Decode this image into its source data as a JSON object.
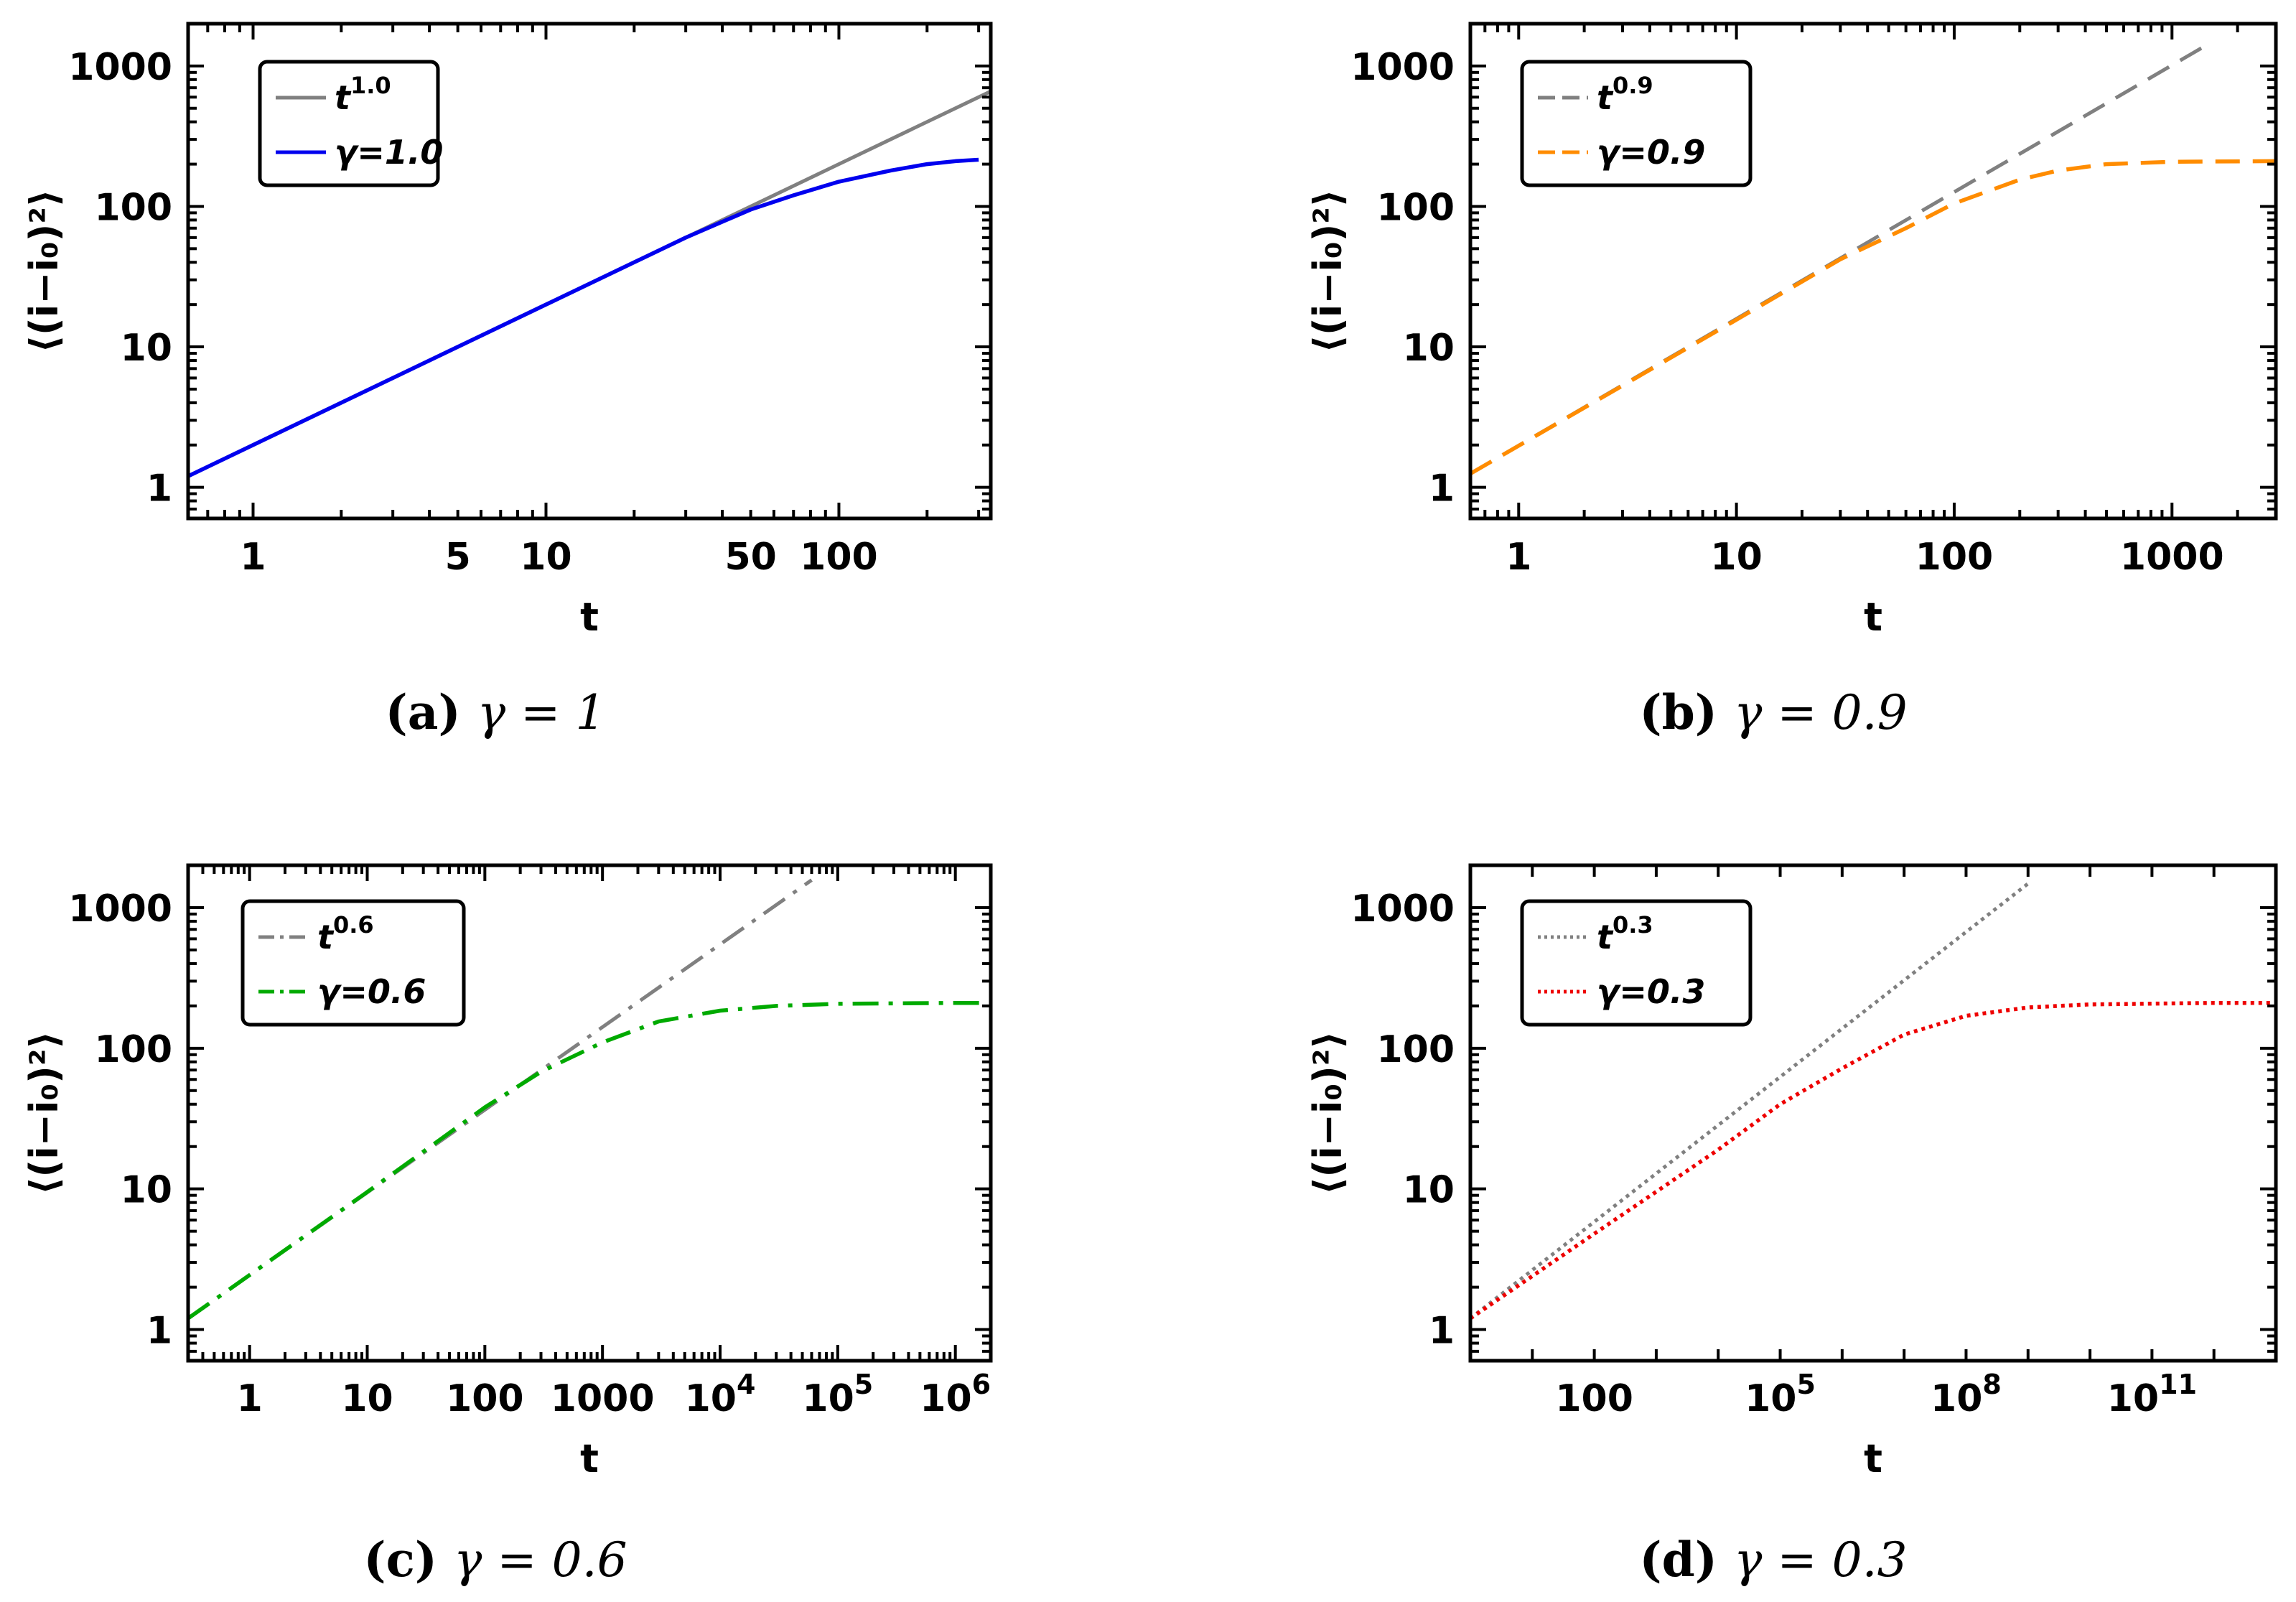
{
  "chart_data": [
    {
      "type": "line",
      "panel": "a",
      "caption_letter": "(a)",
      "caption_eq": "γ = 1",
      "xscale": "log",
      "yscale": "log",
      "xlim": [
        0.6,
        330
      ],
      "ylim": [
        0.6,
        2000
      ],
      "xlabel": "t",
      "ylabel": "⟨(i−i₀)²⟩",
      "xticks": [
        {
          "value": 1,
          "label": "1"
        },
        {
          "value": 5,
          "label": "5"
        },
        {
          "value": 10,
          "label": "10"
        },
        {
          "value": 50,
          "label": "50"
        },
        {
          "value": 100,
          "label": "100"
        }
      ],
      "yticks": [
        {
          "value": 1,
          "label": "1"
        },
        {
          "value": 10,
          "label": "10"
        },
        {
          "value": 100,
          "label": "100"
        },
        {
          "value": 1000,
          "label": "1000"
        }
      ],
      "legend_position": "top-left",
      "series": [
        {
          "name": "t",
          "name_exp": "1.0",
          "color": "#808080",
          "style": "solid",
          "points": [
            [
              0.6,
              1.2
            ],
            [
              330,
              660
            ]
          ]
        },
        {
          "name": "γ=1.0",
          "color": "#0000ee",
          "style": "solid",
          "points": [
            [
              0.6,
              1.2
            ],
            [
              10,
              20
            ],
            [
              30,
              60
            ],
            [
              50,
              95
            ],
            [
              70,
              120
            ],
            [
              100,
              150
            ],
            [
              150,
              180
            ],
            [
              200,
              200
            ],
            [
              250,
              210
            ],
            [
              300,
              215
            ]
          ]
        }
      ]
    },
    {
      "type": "line",
      "panel": "b",
      "caption_letter": "(b)",
      "caption_eq": "γ = 0.9",
      "xscale": "log",
      "yscale": "log",
      "xlim": [
        0.6,
        3000
      ],
      "ylim": [
        0.6,
        2000
      ],
      "xlabel": "t",
      "ylabel": "⟨(i−i₀)²⟩",
      "xticks": [
        {
          "value": 1,
          "label": "1"
        },
        {
          "value": 10,
          "label": "10"
        },
        {
          "value": 100,
          "label": "100"
        },
        {
          "value": 1000,
          "label": "1000"
        }
      ],
      "yticks": [
        {
          "value": 1,
          "label": "1"
        },
        {
          "value": 10,
          "label": "10"
        },
        {
          "value": 100,
          "label": "100"
        },
        {
          "value": 1000,
          "label": "1000"
        }
      ],
      "legend_position": "top-left",
      "series": [
        {
          "name": "t",
          "name_exp": "0.9",
          "color": "#808080",
          "style": "dashed",
          "points": [
            [
              0.6,
              1.25
            ],
            [
              1500,
              1460
            ]
          ]
        },
        {
          "name": "γ=0.9",
          "color": "#ff8c00",
          "style": "dashed",
          "points": [
            [
              0.6,
              1.25
            ],
            [
              10,
              15.6
            ],
            [
              30,
              42
            ],
            [
              60,
              70
            ],
            [
              100,
              105
            ],
            [
              200,
              155
            ],
            [
              300,
              180
            ],
            [
              500,
              200
            ],
            [
              1000,
              208
            ],
            [
              3000,
              210
            ]
          ]
        }
      ]
    },
    {
      "type": "line",
      "panel": "c",
      "caption_letter": "(c)",
      "caption_eq": "γ = 0.6",
      "xscale": "log",
      "yscale": "log",
      "xlim": [
        0.3,
        2000000
      ],
      "ylim": [
        0.6,
        2000
      ],
      "xlabel": "t",
      "ylabel": "⟨(i−i₀)²⟩",
      "xticks": [
        {
          "value": 1,
          "label": "1"
        },
        {
          "value": 10,
          "label": "10"
        },
        {
          "value": 100,
          "label": "100"
        },
        {
          "value": 1000,
          "label": "1000"
        },
        {
          "value": 10000,
          "label": "10",
          "exp": "4"
        },
        {
          "value": 100000,
          "label": "10",
          "exp": "5"
        },
        {
          "value": 1000000,
          "label": "10",
          "exp": "6"
        }
      ],
      "yticks": [
        {
          "value": 1,
          "label": "1"
        },
        {
          "value": 10,
          "label": "10"
        },
        {
          "value": 100,
          "label": "100"
        },
        {
          "value": 1000,
          "label": "1000"
        }
      ],
      "legend_position": "top-left",
      "series": [
        {
          "name": "t",
          "name_exp": "0.6",
          "color": "#808080",
          "style": "dashdot",
          "points": [
            [
              0.3,
              1.2
            ],
            [
              60000,
              1570
            ]
          ]
        },
        {
          "name": "γ=0.6",
          "color": "#00aa00",
          "style": "dashdot",
          "points": [
            [
              0.3,
              1.2
            ],
            [
              10,
              9.5
            ],
            [
              100,
              38
            ],
            [
              300,
              68
            ],
            [
              1000,
              110
            ],
            [
              3000,
              155
            ],
            [
              10000,
              185
            ],
            [
              30000,
              200
            ],
            [
              100000,
              207
            ],
            [
              1000000,
              210
            ],
            [
              2000000,
              210
            ]
          ]
        }
      ]
    },
    {
      "type": "line",
      "panel": "d",
      "caption_letter": "(d)",
      "caption_eq": "γ = 0.3",
      "xscale": "log",
      "yscale": "log",
      "xlim": [
        1,
        10000000000000.0
      ],
      "ylim": [
        0.6,
        2000
      ],
      "xlabel": "t",
      "ylabel": "⟨(i−i₀)²⟩",
      "xticks": [
        {
          "value": 100,
          "label": "100"
        },
        {
          "value": 100000,
          "label": "10",
          "exp": "5"
        },
        {
          "value": 100000000,
          "label": "10",
          "exp": "8"
        },
        {
          "value": 100000000000,
          "label": "10",
          "exp": "11"
        }
      ],
      "yticks": [
        {
          "value": 1,
          "label": "1"
        },
        {
          "value": 10,
          "label": "10"
        },
        {
          "value": 100,
          "label": "100"
        },
        {
          "value": 1000,
          "label": "1000"
        }
      ],
      "legend_position": "top-left",
      "series": [
        {
          "name": "t",
          "name_exp": "0.3",
          "color": "#808080",
          "style": "dotted",
          "points": [
            [
              1,
              1.2
            ],
            [
              1000000000,
              1480
            ]
          ]
        },
        {
          "name": "γ=0.3",
          "color": "#ee0000",
          "style": "dotted",
          "points": [
            [
              1,
              1.2
            ],
            [
              100,
              4.8
            ],
            [
              10000,
              19
            ],
            [
              100000,
              40
            ],
            [
              1000000,
              72
            ],
            [
              10000000,
              125
            ],
            [
              100000000,
              170
            ],
            [
              1000000000,
              195
            ],
            [
              10000000000,
              205
            ],
            [
              1000000000000,
              210
            ],
            [
              10000000000000,
              210
            ]
          ]
        }
      ]
    }
  ]
}
